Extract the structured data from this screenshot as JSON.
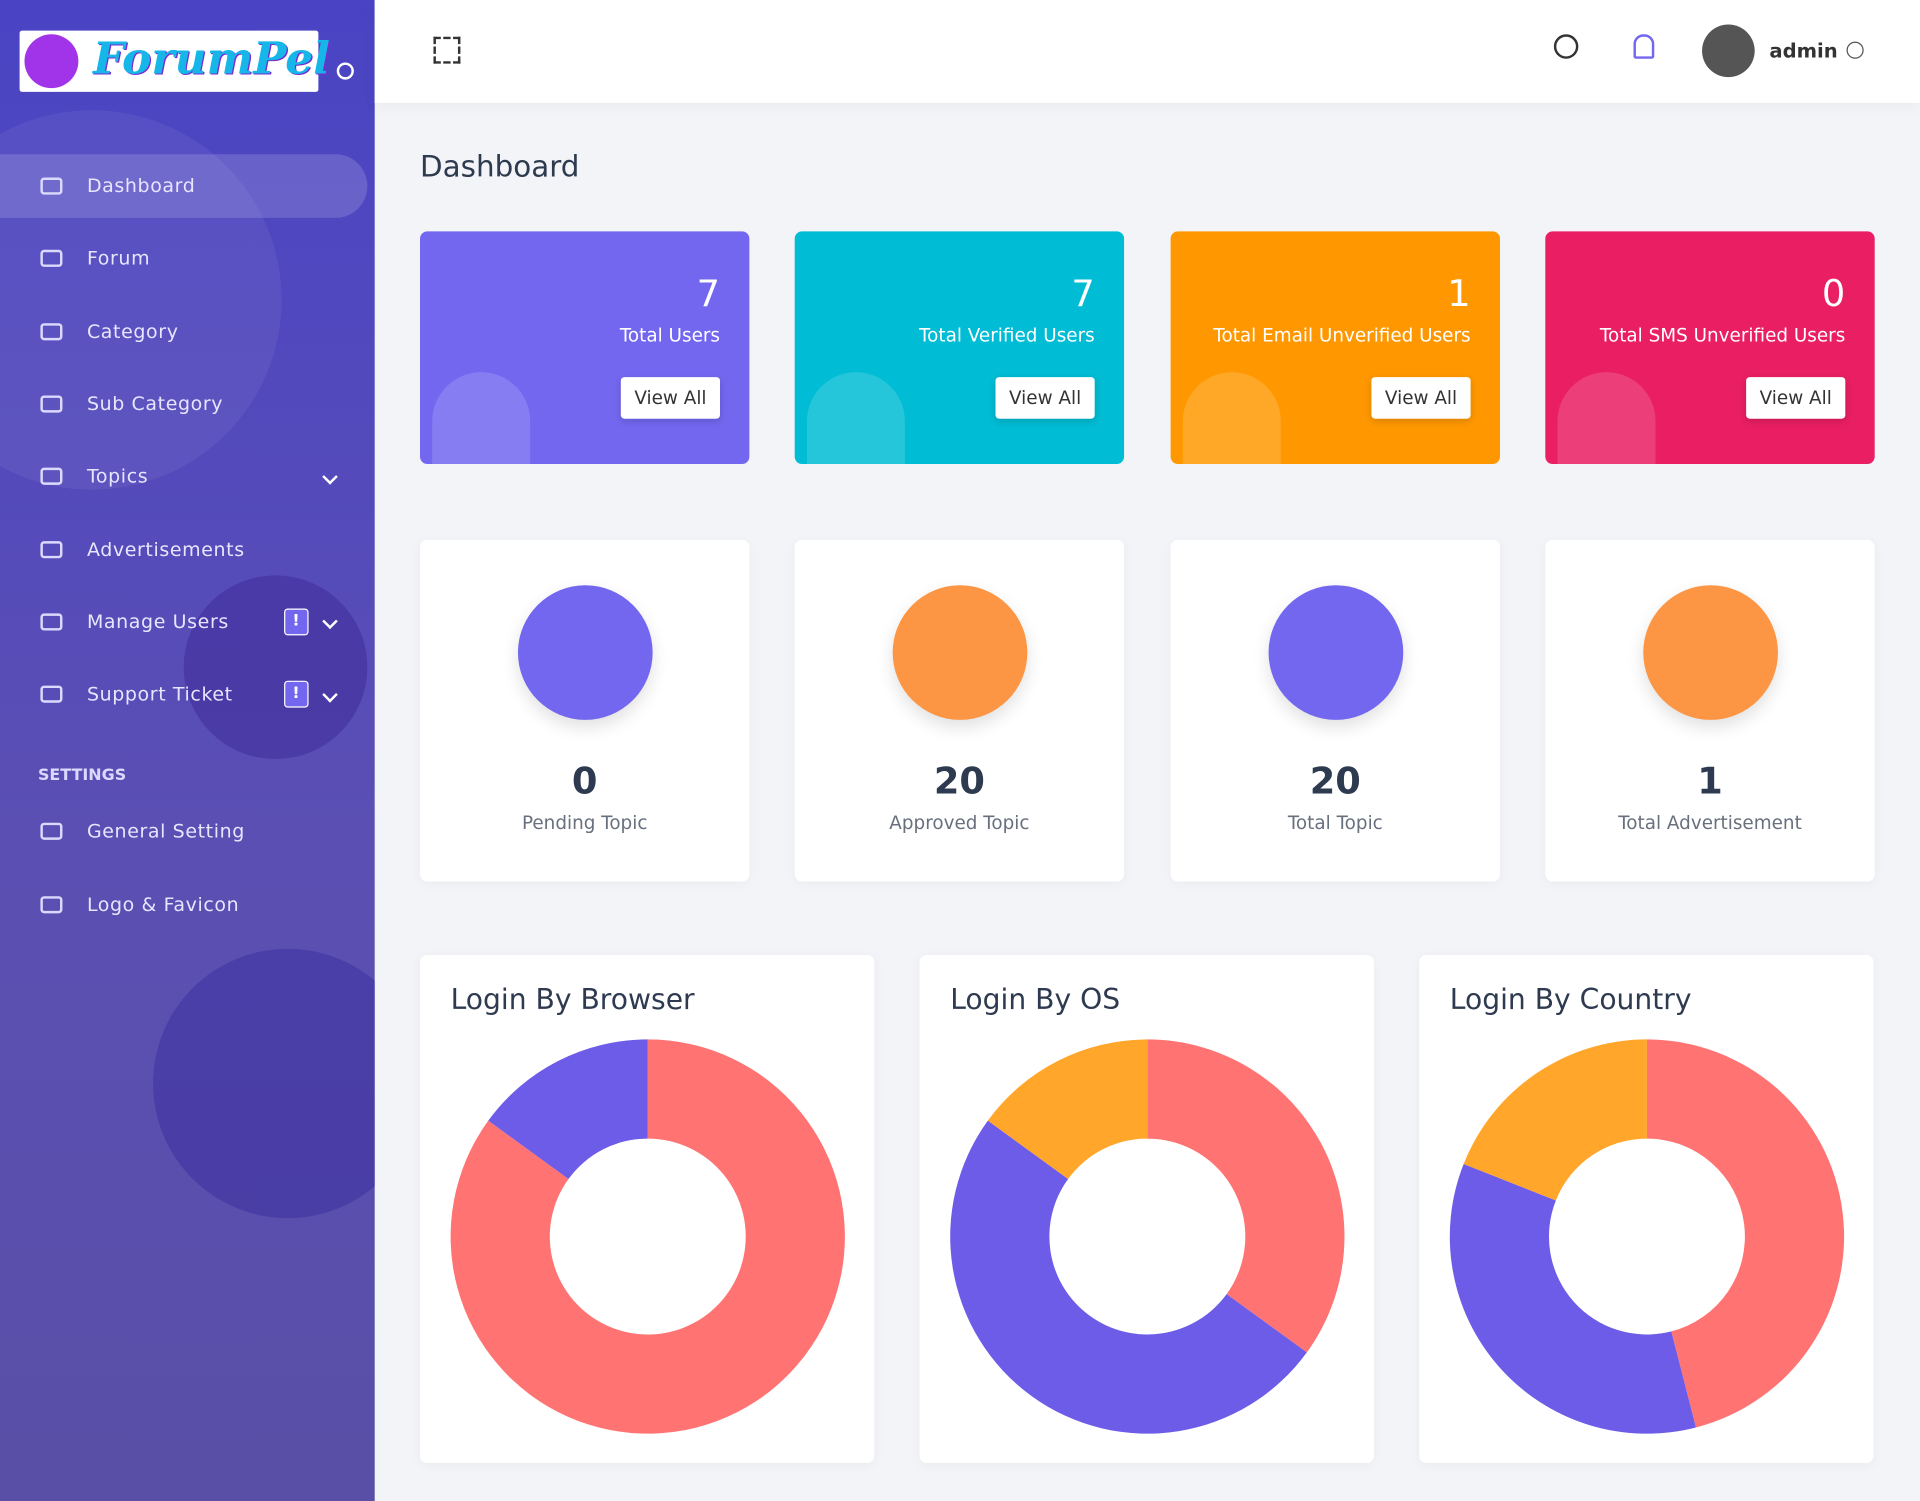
{
  "logo": "ForumPel",
  "header": {
    "user": "admin"
  },
  "sidebar": {
    "menu": [
      {
        "label": "Dashboard"
      },
      {
        "label": "Forum"
      },
      {
        "label": "Category"
      },
      {
        "label": "Sub Category"
      },
      {
        "label": "Topics"
      },
      {
        "label": "Advertisements"
      },
      {
        "label": "Manage Users",
        "badge": "!"
      },
      {
        "label": "Support Ticket",
        "badge": "!"
      }
    ],
    "section": "SETTINGS",
    "settings": [
      {
        "label": "General Setting"
      },
      {
        "label": "Logo & Favicon"
      }
    ]
  },
  "page_title": "Dashboard",
  "stat_cards": [
    {
      "value": 7,
      "label": "Total Users",
      "button": "View All",
      "color": "#7367f0"
    },
    {
      "value": 7,
      "label": "Total Verified Users",
      "button": "View All",
      "color": "#00bcd4"
    },
    {
      "value": 1,
      "label": "Total Email Unverified Users",
      "button": "View All",
      "color": "#ff9800"
    },
    {
      "value": 0,
      "label": "Total SMS Unverified Users",
      "button": "View All",
      "color": "#e91e63"
    }
  ],
  "topic_cards": [
    {
      "value": 0,
      "label": "Pending Topic",
      "color": "#7367f0"
    },
    {
      "value": 20,
      "label": "Approved Topic",
      "color": "#fd9644"
    },
    {
      "value": 20,
      "label": "Total Topic",
      "color": "#7367f0"
    },
    {
      "value": 1,
      "label": "Total Advertisement",
      "color": "#fd9644"
    }
  ],
  "chart_data": [
    {
      "type": "pie",
      "title": "Login By Browser",
      "values": [
        85,
        15
      ],
      "colors": [
        "#ff7473",
        "#6c5ce7"
      ]
    },
    {
      "type": "pie",
      "title": "Login By OS",
      "values": [
        35,
        50,
        15
      ],
      "colors": [
        "#ff7473",
        "#6c5ce7",
        "#ffa62b"
      ]
    },
    {
      "type": "pie",
      "title": "Login By Country",
      "values": [
        46,
        35,
        19
      ],
      "colors": [
        "#ff7473",
        "#6c5ce7",
        "#ffa62b"
      ]
    }
  ]
}
